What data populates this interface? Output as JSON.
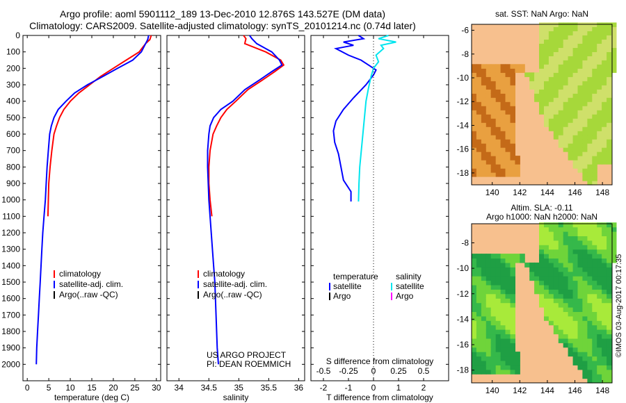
{
  "header": {
    "line1": "Argo profile: aoml 5901112_189 13-Dec-2010 12.876S 143.527E (DM data)",
    "line2": "Climatology: CARS2009. Satellite-adjusted climatology: synTS_20101214.nc (0.74d later)"
  },
  "colors": {
    "climatology": "#ff0000",
    "satellite": "#0000ff",
    "argo": "#000000",
    "salinity_satellite": "#00e5ee",
    "salinity_argo": "#ff00ff",
    "land": "#f7c08e"
  },
  "chart_data": [
    {
      "type": "line",
      "xlabel": "temperature (deg C)",
      "ylabel": "",
      "xlim": [
        -1,
        31
      ],
      "ylim": [
        0,
        2100
      ],
      "y_inverted": true,
      "xticks": [
        0,
        5,
        10,
        15,
        20,
        25,
        30
      ],
      "yticks": [
        0,
        100,
        200,
        300,
        400,
        500,
        600,
        700,
        800,
        900,
        1000,
        1100,
        1200,
        1300,
        1400,
        1500,
        1600,
        1700,
        1800,
        1900,
        2000
      ],
      "legend": [
        "climatology",
        "satellite-adj. clim.",
        "Argo(..raw -QC)"
      ],
      "legend_position": "lower-middle",
      "series": [
        {
          "name": "climatology",
          "color": "#ff0000",
          "x": [
            28.8,
            28.5,
            27.5,
            26,
            23,
            20,
            17,
            14.5,
            12,
            10,
            8.5,
            7.5,
            6.8,
            6.2,
            5.7,
            5.3,
            5,
            4.8
          ],
          "y": [
            0,
            25,
            50,
            100,
            150,
            200,
            250,
            300,
            350,
            400,
            450,
            500,
            550,
            600,
            700,
            800,
            900,
            1100
          ]
        },
        {
          "name": "satellite-adj. clim.",
          "color": "#0000ff",
          "x": [
            28.2,
            28,
            27.5,
            26.5,
            24.5,
            21,
            17.5,
            14,
            11,
            9,
            7.2,
            6.2,
            5.6,
            5.2,
            4.9,
            4.6,
            4.4,
            4.2,
            3.9,
            3.6,
            3.4,
            3.2,
            3,
            2.8,
            2.6,
            2.4,
            2.2,
            2.1
          ],
          "y": [
            0,
            25,
            50,
            100,
            150,
            200,
            250,
            300,
            350,
            400,
            450,
            500,
            550,
            600,
            700,
            800,
            900,
            1000,
            1100,
            1200,
            1300,
            1400,
            1500,
            1600,
            1700,
            1800,
            1900,
            2000
          ]
        }
      ]
    },
    {
      "type": "line",
      "xlabel": "salinity",
      "ylabel": "",
      "xlim": [
        33.8,
        36.1
      ],
      "ylim": [
        0,
        2100
      ],
      "y_inverted": true,
      "xticks": [
        34,
        34.5,
        35,
        35.5,
        36
      ],
      "xticklabels": [
        "34",
        "34.5",
        "35",
        "35.5",
        "36"
      ],
      "legend": [
        "climatology",
        "satellite-adj. clim.",
        "Argo(..raw -QC)"
      ],
      "legend_position": "lower-middle",
      "annotation": [
        "US ARGO PROJECT",
        "PI: DEAN ROEMMICH"
      ],
      "series": [
        {
          "name": "climatology",
          "color": "#ff0000",
          "x": [
            35.08,
            35.12,
            35.1,
            35.45,
            35.7,
            35.75,
            35.6,
            35.4,
            35.15,
            34.95,
            34.8,
            34.7,
            34.63,
            34.57,
            34.52,
            34.5,
            34.5,
            34.52,
            34.55
          ],
          "y": [
            0,
            20,
            50,
            100,
            150,
            180,
            220,
            270,
            330,
            400,
            450,
            500,
            550,
            600,
            700,
            800,
            900,
            1000,
            1100
          ]
        },
        {
          "name": "satellite-adj. clim.",
          "color": "#0000ff",
          "x": [
            35.18,
            35.22,
            35.3,
            35.55,
            35.68,
            35.72,
            35.55,
            35.35,
            35.1,
            34.9,
            34.7,
            34.58,
            34.52,
            34.5,
            34.48,
            34.48,
            34.49,
            34.5,
            34.52,
            34.54,
            34.56,
            34.58,
            34.6,
            34.62,
            34.64,
            34.66
          ],
          "y": [
            0,
            20,
            50,
            100,
            150,
            180,
            220,
            270,
            330,
            400,
            450,
            500,
            550,
            600,
            700,
            800,
            900,
            1000,
            1100,
            1200,
            1300,
            1400,
            1500,
            1700,
            1900,
            2000
          ]
        }
      ]
    },
    {
      "type": "line",
      "xlabel": "T difference from climatology",
      "xlabel_top": "S difference from climatology",
      "xlim": [
        -2.5,
        3
      ],
      "ylim": [
        0,
        2100
      ],
      "y_inverted": true,
      "xticks": [
        -2,
        -1,
        0,
        1,
        2
      ],
      "xticks_top": [
        -0.5,
        -0.25,
        0,
        0.25,
        0.5
      ],
      "xticklabels_top": [
        "-0.5",
        "-0.25",
        "0",
        "0.25",
        "0.5"
      ],
      "legend_left": [
        "temperature",
        "satellite",
        "Argo"
      ],
      "legend_right": [
        "salinity",
        "satellite",
        "Argo"
      ],
      "legend_position": "lower",
      "series": [
        {
          "name": "temperature satellite",
          "color": "#0000ff",
          "x": [
            -0.6,
            -0.4,
            -1.2,
            -0.8,
            -1.5,
            -1.0,
            -0.5,
            -0.2,
            0.1,
            0.0,
            -0.3,
            -0.8,
            -1.2,
            -1.5,
            -1.6,
            -1.55,
            -1.4,
            -1.3,
            -1.2,
            -0.9,
            -0.9
          ],
          "y": [
            0,
            20,
            40,
            60,
            80,
            120,
            150,
            180,
            210,
            240,
            300,
            380,
            450,
            520,
            580,
            650,
            720,
            800,
            880,
            950,
            1010
          ]
        },
        {
          "name": "salinity satellite",
          "color": "#00e5ee",
          "x": [
            0.6,
            0.2,
            0.9,
            0.3,
            0.4,
            0.1,
            0.2,
            0.0,
            -0.1,
            -0.2,
            -0.3,
            -0.35,
            -0.4,
            -0.45,
            -0.5,
            -0.55,
            -0.58,
            -0.6
          ],
          "y": [
            0,
            20,
            40,
            60,
            80,
            120,
            160,
            200,
            250,
            320,
            400,
            480,
            560,
            640,
            720,
            800,
            900,
            1010
          ]
        }
      ]
    },
    {
      "type": "heatmap",
      "title": "sat. SST: NaN  Argo: NaN",
      "xlim": [
        138.5,
        148.7
      ],
      "ylim": [
        -19,
        -5.5
      ],
      "xticks": [
        140,
        142,
        144,
        146,
        148
      ],
      "yticks": [
        -6,
        -8,
        -10,
        -12,
        -14,
        -16,
        -18
      ],
      "colorscale": [
        "#c46a18",
        "#e9a040",
        "#f3c36a",
        "#cfe06a",
        "#a6d83a",
        "#8fce2e"
      ]
    },
    {
      "type": "heatmap",
      "title": "Altim. SLA: -0.11",
      "subtitle": "Argo h1000: NaN h2000: NaN",
      "xlim": [
        138.5,
        148.7
      ],
      "ylim": [
        -19,
        -6.5
      ],
      "xticks": [
        140,
        142,
        144,
        146,
        148
      ],
      "yticks": [
        -8,
        -10,
        -12,
        -14,
        -16,
        -18
      ],
      "colorscale": [
        "#a8ea3a",
        "#6fd43a",
        "#35b84a",
        "#1f9f44"
      ]
    }
  ],
  "watermark": "©IMOS 03-Aug-2017 00:17:35"
}
